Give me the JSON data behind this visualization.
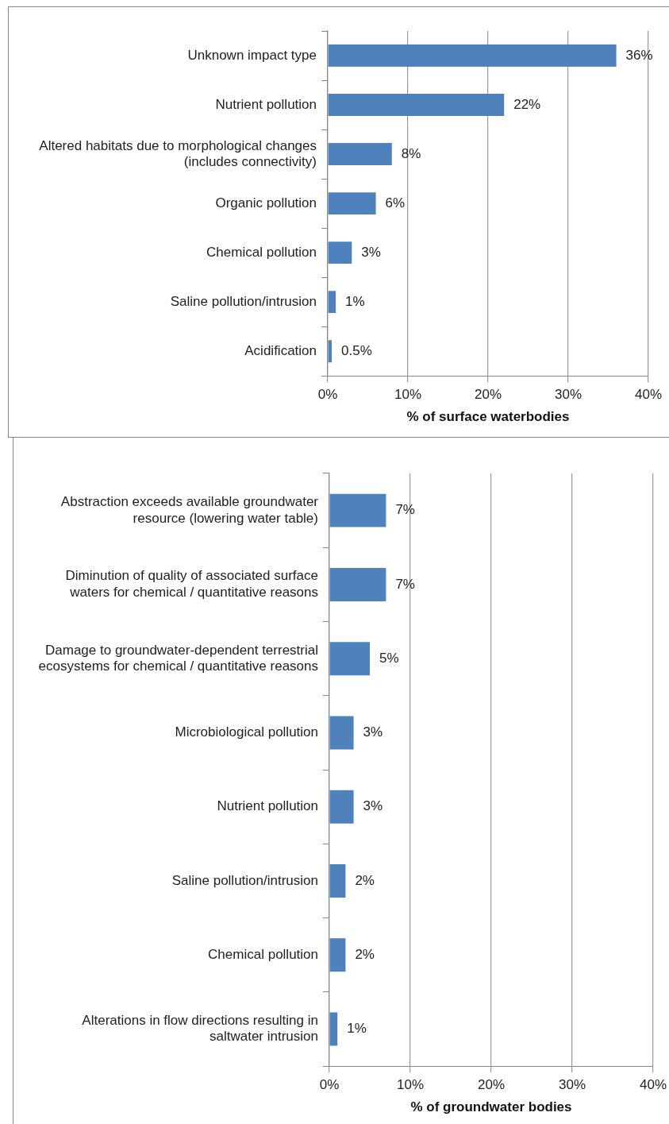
{
  "chart_data": [
    {
      "type": "bar",
      "orientation": "horizontal",
      "xlabel": "% of surface waterbodies",
      "categories": [
        "Unknown impact type",
        "Nutrient pollution",
        "Altered habitats due to morphological changes (includes connectivity)",
        "Organic pollution",
        "Chemical pollution",
        "Saline pollution/intrusion",
        "Acidification"
      ],
      "values": [
        36,
        22,
        8,
        6,
        3,
        1,
        0.5
      ],
      "value_labels": [
        "36%",
        "22%",
        "8%",
        "6%",
        "3%",
        "1%",
        "0.5%"
      ],
      "color": "#4f81bd",
      "xlim": [
        0,
        40
      ],
      "xticks": [
        {
          "value": 0,
          "label": "0%"
        },
        {
          "value": 10,
          "label": "10%"
        },
        {
          "value": 20,
          "label": "20%"
        },
        {
          "value": 30,
          "label": "30%"
        },
        {
          "value": 40,
          "label": "40%"
        }
      ],
      "grid": "x",
      "legend": false
    },
    {
      "type": "bar",
      "orientation": "horizontal",
      "xlabel": "% of groundwater bodies",
      "categories": [
        "Abstraction exceeds available groundwater resource (lowering water table)",
        "Diminution of quality of associated surface waters for chemical / quantitative reasons",
        "Damage to groundwater-dependent terrestrial ecosystems for chemical / quantitative reasons",
        "Microbiological pollution",
        "Nutrient pollution",
        "Saline pollution/intrusion",
        "Chemical pollution",
        "Alterations in flow directions resulting in saltwater intrusion"
      ],
      "values": [
        7,
        7,
        5,
        3,
        3,
        2,
        2,
        1
      ],
      "value_labels": [
        "7%",
        "7%",
        "5%",
        "3%",
        "3%",
        "2%",
        "2%",
        "1%"
      ],
      "color": "#4f81bd",
      "xlim": [
        0,
        40
      ],
      "xticks": [
        {
          "value": 0,
          "label": "0%"
        },
        {
          "value": 10,
          "label": "10%"
        },
        {
          "value": 20,
          "label": "20%"
        },
        {
          "value": 30,
          "label": "30%"
        },
        {
          "value": 40,
          "label": "40%"
        }
      ],
      "grid": "x",
      "legend": false
    }
  ]
}
